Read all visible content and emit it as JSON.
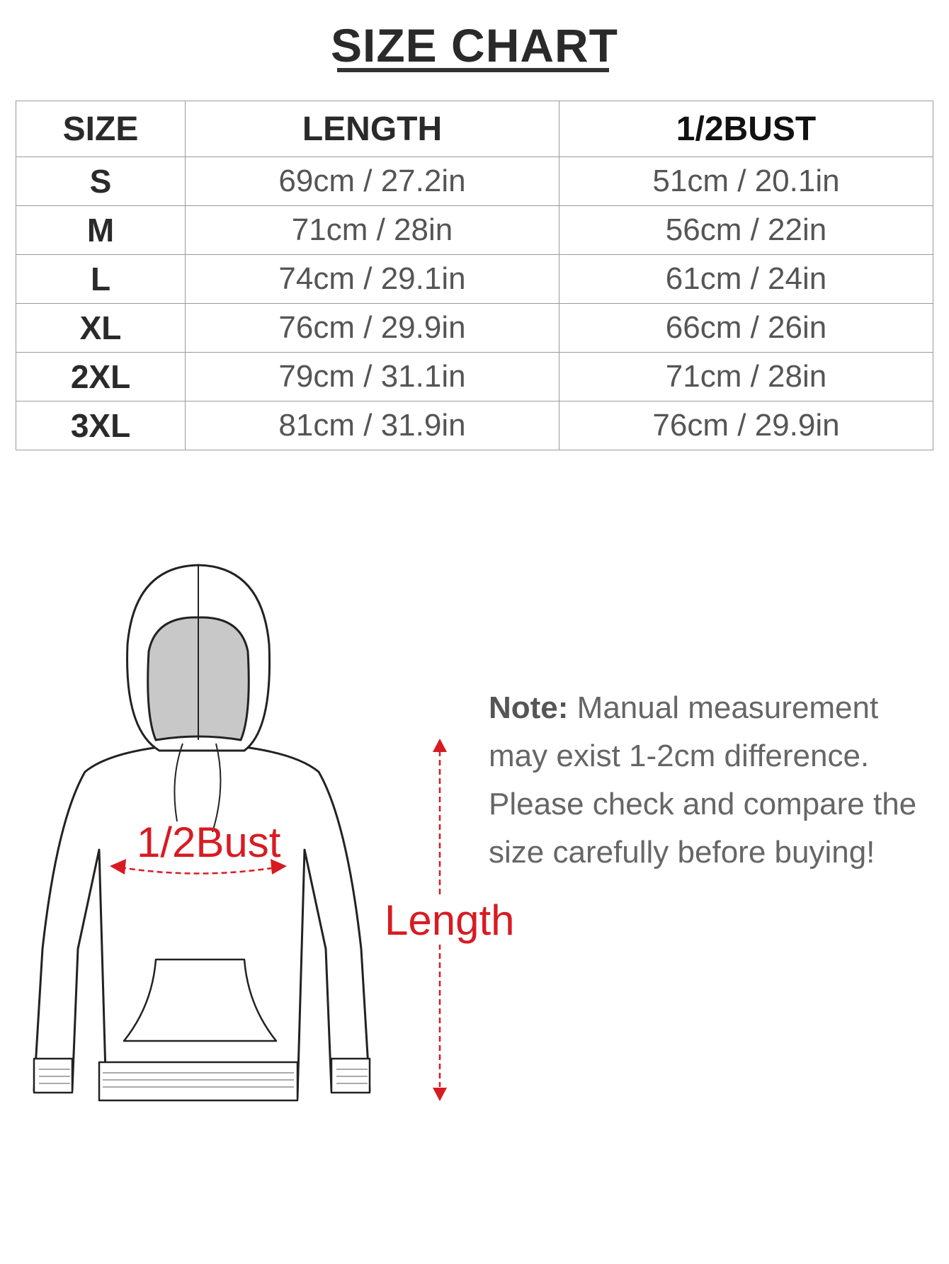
{
  "title": "SIZE CHART",
  "table": {
    "headers": [
      "SIZE",
      "LENGTH",
      "1/2BUST"
    ],
    "rows": [
      {
        "size": "S",
        "length": "69cm / 27.2in",
        "bust": "51cm / 20.1in"
      },
      {
        "size": "M",
        "length": "71cm / 28in",
        "bust": "56cm / 22in"
      },
      {
        "size": "L",
        "length": "74cm / 29.1in",
        "bust": "61cm / 24in"
      },
      {
        "size": "XL",
        "length": "76cm / 29.9in",
        "bust": "66cm / 26in"
      },
      {
        "size": "2XL",
        "length": "79cm / 31.1in",
        "bust": "71cm / 28in"
      },
      {
        "size": "3XL",
        "length": "81cm / 31.9in",
        "bust": "76cm / 29.9in"
      }
    ]
  },
  "diagram": {
    "bust_label": "1/2Bust",
    "length_label": "Length",
    "accent_color": "#d81b22"
  },
  "note": {
    "heading": "Note:",
    "text": " Manual measurement may exist 1-2cm difference. Please check and compare the size carefully before buying!"
  }
}
